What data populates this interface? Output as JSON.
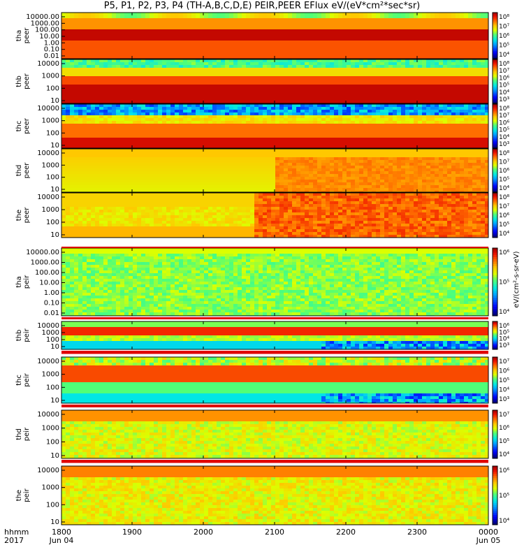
{
  "chart_data": {
    "type": "heatmap",
    "title": "P5, P1, P2, P3, P4 (TH-A,B,C,D,E) PEIR,PEER EFlux eV/(eV*cm²*sec*sr)",
    "x_ticks": [
      "1800",
      "1900",
      "2000",
      "2100",
      "2200",
      "2300",
      "0000"
    ],
    "x_dates": [
      "Jun 04",
      "Jun 05"
    ],
    "x_axis_name": "hhmm",
    "x_axis_year": "2017",
    "colorbar_unit": "eV/(cm²-s-sr-eV)",
    "panels": [
      {
        "id": "tha-peer",
        "label": [
          "tha",
          "peer"
        ],
        "yticks": [
          "0.01",
          "0.10",
          "1.00",
          "10.00",
          "100.00",
          "1000.00",
          "10000.00"
        ],
        "cbar_ticks": [
          "10⁴",
          "10⁵",
          "10⁶",
          "10⁷",
          "10⁸"
        ]
      },
      {
        "id": "thb-peer",
        "label": [
          "thb",
          "peer"
        ],
        "yticks": [
          "10",
          "100",
          "1000",
          "10000"
        ],
        "cbar_ticks": [
          "10³",
          "10⁴",
          "10⁵",
          "10⁶",
          "10⁷",
          "10⁸"
        ]
      },
      {
        "id": "thc-peer",
        "label": [
          "thc",
          "peer"
        ],
        "yticks": [
          "10",
          "100",
          "1000",
          "10000"
        ],
        "cbar_ticks": [
          "10³",
          "10⁴",
          "10⁵",
          "10⁶",
          "10⁷",
          "10⁸"
        ]
      },
      {
        "id": "thd-peer",
        "label": [
          "thd",
          "peer"
        ],
        "yticks": [
          "10",
          "100",
          "1000",
          "10000"
        ],
        "cbar_ticks": [
          "10⁴",
          "10⁵",
          "10⁶",
          "10⁷",
          "10⁸"
        ]
      },
      {
        "id": "the-peer",
        "label": [
          "the",
          "peer"
        ],
        "yticks": [
          "10",
          "100",
          "1000",
          "10000"
        ],
        "cbar_ticks": [
          "10⁴",
          "10⁵",
          "10⁶",
          "10⁷",
          "10⁸"
        ]
      },
      {
        "id": "tha-peir",
        "label": [
          "tha",
          "peir"
        ],
        "yticks": [
          "0.01",
          "0.10",
          "1.00",
          "10.00",
          "100.00",
          "1000.00",
          "10000.00"
        ],
        "cbar_ticks": [
          "10⁴",
          "10⁵",
          "10⁶"
        ]
      },
      {
        "id": "thb-peir",
        "label": [
          "thb",
          "peir"
        ],
        "yticks": [
          "10",
          "100",
          "1000",
          "10000"
        ],
        "cbar_ticks": [
          "10³",
          "10⁴",
          "10⁵",
          "10⁶"
        ]
      },
      {
        "id": "thc-peir",
        "label": [
          "thc",
          "peir"
        ],
        "yticks": [
          "10",
          "100",
          "1000",
          "10000"
        ],
        "cbar_ticks": [
          "10³",
          "10⁴",
          "10⁵",
          "10⁶",
          "10⁷"
        ]
      },
      {
        "id": "thd-peir",
        "label": [
          "thd",
          "peir"
        ],
        "yticks": [
          "10",
          "100",
          "1000",
          "10000"
        ],
        "cbar_ticks": [
          "10⁴",
          "10⁵",
          "10⁶",
          "10⁷"
        ]
      },
      {
        "id": "the-peir",
        "label": [
          "the",
          "peir"
        ],
        "yticks": [
          "10",
          "100",
          "1000",
          "10000"
        ],
        "cbar_ticks": [
          "10⁴",
          "10⁵",
          "10⁶"
        ]
      }
    ]
  }
}
